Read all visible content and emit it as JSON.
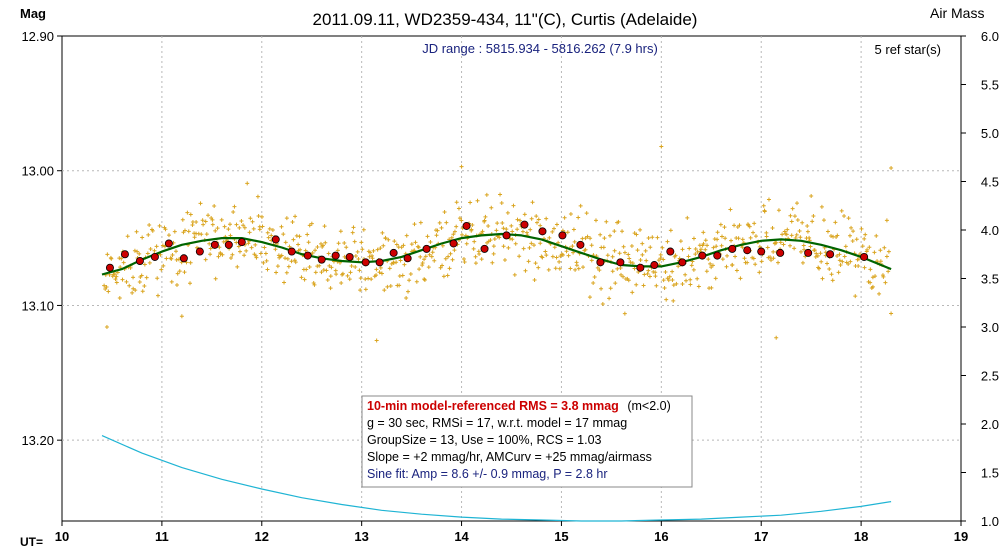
{
  "chart_data": {
    "type": "scatter",
    "title": "2011.09.11, WD2359-434, 11\"(C), Curtis (Adelaide)",
    "y_left_label": "Mag",
    "y_right_label": "Air Mass",
    "x_prefix_label": "UT=",
    "jd_range_text": "JD range : 5815.934 - 5816.262 (7.9 hrs)",
    "ref_stars_text": "5 ref star(s)",
    "xlim": [
      10,
      19
    ],
    "ylim_mag": [
      13.26,
      12.9
    ],
    "ylim_airmass": [
      1.0,
      6.0
    ],
    "x_ticks": [
      "10",
      "11",
      "12",
      "13",
      "14",
      "15",
      "16",
      "17",
      "18",
      "19"
    ],
    "y_left_ticks": [
      "12.90",
      "13.00",
      "13.10",
      "13.20"
    ],
    "y_right_ticks": [
      "6.0",
      "5.5",
      "5.0",
      "4.5",
      "4.0",
      "3.5",
      "3.0",
      "2.5",
      "2.0",
      "1.5",
      "1.0"
    ],
    "grid": true,
    "colors": {
      "raw_points": "#daa520",
      "binned_points": "#cc0000",
      "model_curve": "#006400",
      "airmass_curve": "#1fb4d4",
      "stats_highlight": "#cc0000",
      "jd_text": "#1a237e",
      "sine_text": "#1a237e"
    },
    "series": [
      {
        "name": "10-min bins",
        "x": [
          10.48,
          10.63,
          10.78,
          10.93,
          11.07,
          11.22,
          11.38,
          11.53,
          11.67,
          11.8,
          12.14,
          12.3,
          12.46,
          12.6,
          12.74,
          12.88,
          13.04,
          13.18,
          13.32,
          13.46,
          13.65,
          13.92,
          14.05,
          14.23,
          14.45,
          14.63,
          14.81,
          15.01,
          15.19,
          15.39,
          15.59,
          15.79,
          15.93,
          16.09,
          16.21,
          16.41,
          16.56,
          16.71,
          16.86,
          17.0,
          17.19,
          17.47,
          17.69,
          18.03
        ],
        "y": [
          13.072,
          13.062,
          13.067,
          13.064,
          13.054,
          13.065,
          13.06,
          13.055,
          13.055,
          13.053,
          13.051,
          13.06,
          13.063,
          13.066,
          13.063,
          13.064,
          13.068,
          13.068,
          13.061,
          13.065,
          13.058,
          13.054,
          13.041,
          13.058,
          13.048,
          13.04,
          13.045,
          13.048,
          13.055,
          13.068,
          13.068,
          13.072,
          13.07,
          13.06,
          13.068,
          13.063,
          13.063,
          13.058,
          13.059,
          13.06,
          13.061,
          13.061,
          13.062,
          13.064
        ]
      },
      {
        "name": "Sine fit",
        "x": [
          10.4,
          10.6,
          10.8,
          11.0,
          11.2,
          11.4,
          11.6,
          11.8,
          12.0,
          12.2,
          12.4,
          12.6,
          12.8,
          13.0,
          13.2,
          13.4,
          13.6,
          13.8,
          14.0,
          14.2,
          14.4,
          14.6,
          14.8,
          15.0,
          15.2,
          15.4,
          15.6,
          15.8,
          16.0,
          16.2,
          16.4,
          16.6,
          16.8,
          17.0,
          17.2,
          17.4,
          17.6,
          17.8,
          18.0,
          18.2,
          18.3
        ],
        "y": [
          13.077,
          13.073,
          13.066,
          13.06,
          13.055,
          13.052,
          13.05,
          13.05,
          13.053,
          13.057,
          13.062,
          13.065,
          13.067,
          13.068,
          13.067,
          13.064,
          13.059,
          13.054,
          13.05,
          13.048,
          13.047,
          13.048,
          13.051,
          13.056,
          13.061,
          13.066,
          13.07,
          13.071,
          13.071,
          13.068,
          13.064,
          13.059,
          13.055,
          13.052,
          13.051,
          13.052,
          13.055,
          13.059,
          13.064,
          13.07,
          13.073
        ]
      },
      {
        "name": "Air mass",
        "x": [
          10.4,
          10.8,
          11.2,
          11.6,
          12.0,
          12.4,
          12.8,
          13.2,
          13.6,
          14.0,
          14.4,
          14.8,
          15.2,
          15.6,
          16.0,
          16.4,
          16.8,
          17.2,
          17.6,
          18.0,
          18.3
        ],
        "y": [
          1.88,
          1.7,
          1.55,
          1.43,
          1.33,
          1.24,
          1.17,
          1.11,
          1.07,
          1.04,
          1.02,
          1.01,
          1.0,
          1.0,
          1.01,
          1.02,
          1.04,
          1.06,
          1.1,
          1.15,
          1.2
        ]
      }
    ],
    "raw_points_note": "",
    "stats_box": {
      "line1_red": "10-min model-referenced RMS = 3.8 mmag",
      "line1_tail": "(m<2.0)",
      "line2": "g = 30 sec, RMSi = 17, w.r.t. model = 17 mmag",
      "line3": "GroupSize = 13, Use = 100%, RCS = 1.03",
      "line4": "Slope = +2 mmag/hr, AMCurv = +25 mmag/airmass",
      "line5": "Sine fit: Amp = 8.6 +/- 0.9 mmag, P = 2.8 hr"
    }
  }
}
